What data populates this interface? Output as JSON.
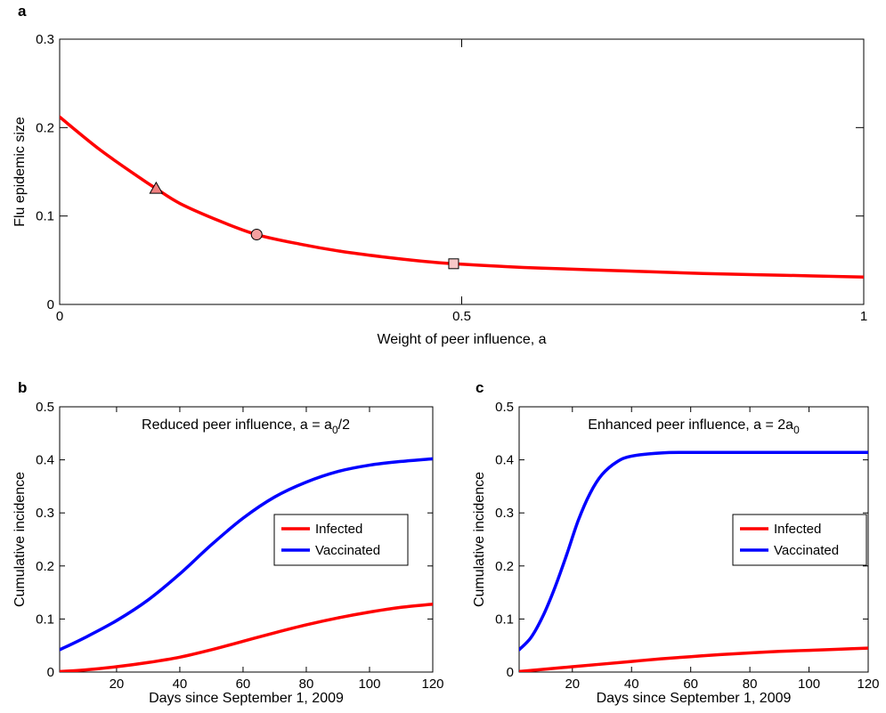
{
  "chart_data": [
    {
      "panel": "a",
      "type": "line",
      "xlabel": "Weight of peer influence, a",
      "ylabel": "Flu epidemic size",
      "xlim": [
        0,
        1
      ],
      "ylim": [
        0,
        0.3
      ],
      "xticks": [
        0,
        0.5,
        1
      ],
      "xtick_labels": [
        "0",
        "0.5",
        "1"
      ],
      "yticks": [
        0,
        0.1,
        0.2,
        0.3
      ],
      "ytick_labels": [
        "0",
        "0.1",
        "0.2",
        "0.3"
      ],
      "series": [
        {
          "color": "#ff0000",
          "x": [
            0,
            0.05,
            0.1,
            0.12,
            0.15,
            0.2,
            0.245,
            0.3,
            0.35,
            0.4,
            0.45,
            0.49,
            0.55,
            0.6,
            0.7,
            0.8,
            0.9,
            1.0
          ],
          "y": [
            0.212,
            0.175,
            0.143,
            0.131,
            0.114,
            0.094,
            0.079,
            0.068,
            0.06,
            0.054,
            0.049,
            0.046,
            0.043,
            0.041,
            0.038,
            0.035,
            0.033,
            0.031
          ]
        }
      ],
      "markers": [
        {
          "shape": "triangle",
          "x": 0.12,
          "y": 0.131,
          "color": "#f08080"
        },
        {
          "shape": "circle",
          "x": 0.245,
          "y": 0.079,
          "color": "#f4a0a0"
        },
        {
          "shape": "square",
          "x": 0.49,
          "y": 0.046,
          "color": "#f8c8c8"
        }
      ]
    },
    {
      "panel": "b",
      "type": "line",
      "annotation": {
        "text": "Reduced peer influence, a = a",
        "sub": "0",
        "suffix": "/2"
      },
      "xlabel": "Days since September 1, 2009",
      "ylabel": "Cumulative incidence",
      "xlim": [
        2,
        120
      ],
      "ylim": [
        0,
        0.5
      ],
      "xticks": [
        20,
        40,
        60,
        80,
        100,
        120
      ],
      "xtick_labels": [
        "20",
        "40",
        "60",
        "80",
        "100",
        "120"
      ],
      "yticks": [
        0,
        0.1,
        0.2,
        0.3,
        0.4,
        0.5
      ],
      "ytick_labels": [
        "0",
        "0.1",
        "0.2",
        "0.3",
        "0.4",
        "0.5"
      ],
      "legend": {
        "position": "right",
        "entries": [
          "Infected",
          "Vaccinated"
        ]
      },
      "series": [
        {
          "name": "Infected",
          "color": "#ff0000",
          "x": [
            2,
            10,
            20,
            30,
            40,
            50,
            60,
            70,
            80,
            90,
            100,
            110,
            120
          ],
          "y": [
            0.001,
            0.004,
            0.01,
            0.018,
            0.028,
            0.042,
            0.058,
            0.074,
            0.089,
            0.102,
            0.113,
            0.122,
            0.128
          ]
        },
        {
          "name": "Vaccinated",
          "color": "#0000ff",
          "x": [
            2,
            10,
            20,
            30,
            40,
            50,
            60,
            70,
            80,
            90,
            100,
            110,
            120
          ],
          "y": [
            0.042,
            0.065,
            0.097,
            0.136,
            0.185,
            0.24,
            0.29,
            0.33,
            0.358,
            0.378,
            0.39,
            0.397,
            0.402
          ]
        }
      ]
    },
    {
      "panel": "c",
      "type": "line",
      "annotation": {
        "text": "Enhanced peer influence, a = 2a",
        "sub": "0",
        "suffix": ""
      },
      "xlabel": "Days since September 1, 2009",
      "ylabel": "Cumulative incidence",
      "xlim": [
        2,
        120
      ],
      "ylim": [
        0,
        0.5
      ],
      "xticks": [
        20,
        40,
        60,
        80,
        100,
        120
      ],
      "xtick_labels": [
        "20",
        "40",
        "60",
        "80",
        "100",
        "120"
      ],
      "yticks": [
        0,
        0.1,
        0.2,
        0.3,
        0.4,
        0.5
      ],
      "ytick_labels": [
        "0",
        "0.1",
        "0.2",
        "0.3",
        "0.4",
        "0.5"
      ],
      "legend": {
        "position": "right",
        "entries": [
          "Infected",
          "Vaccinated"
        ]
      },
      "series": [
        {
          "name": "Infected",
          "color": "#ff0000",
          "x": [
            2,
            10,
            20,
            30,
            40,
            50,
            60,
            70,
            80,
            90,
            100,
            110,
            120
          ],
          "y": [
            0.001,
            0.005,
            0.01,
            0.015,
            0.02,
            0.025,
            0.029,
            0.033,
            0.036,
            0.039,
            0.041,
            0.043,
            0.045
          ]
        },
        {
          "name": "Vaccinated",
          "color": "#0000ff",
          "x": [
            2,
            6,
            10,
            14,
            18,
            22,
            26,
            30,
            35,
            40,
            50,
            60,
            80,
            100,
            120
          ],
          "y": [
            0.042,
            0.065,
            0.105,
            0.158,
            0.22,
            0.286,
            0.337,
            0.372,
            0.396,
            0.407,
            0.413,
            0.414,
            0.414,
            0.414,
            0.414
          ]
        }
      ]
    }
  ]
}
